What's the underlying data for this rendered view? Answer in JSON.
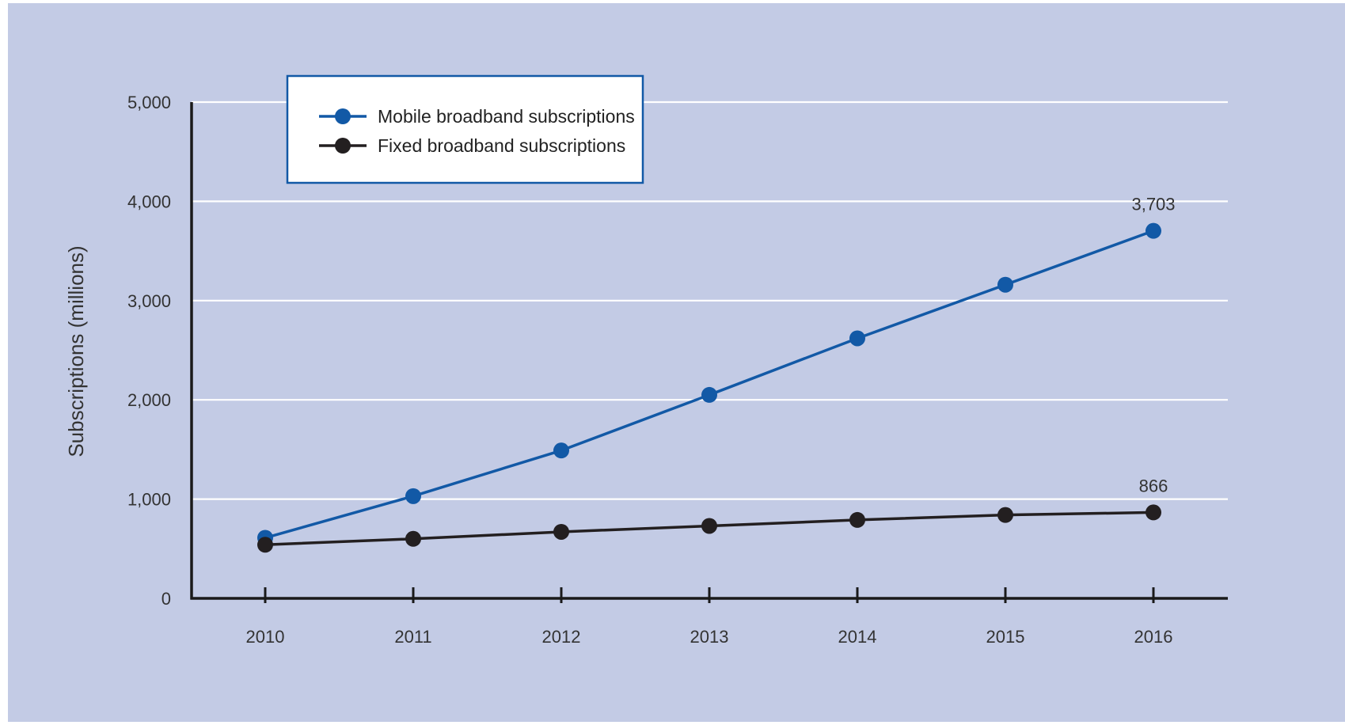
{
  "colors": {
    "panel_bg": "#c3cbe5",
    "gridline": "#ffffff",
    "axis": "#1a1a1a",
    "legend_border": "#1259a6",
    "legend_bg": "#ffffff"
  },
  "chart_data": {
    "type": "line",
    "title": "",
    "xlabel": "",
    "ylabel": "Subscriptions (millions)",
    "x": [
      "2010",
      "2011",
      "2012",
      "2013",
      "2014",
      "2015",
      "2016"
    ],
    "ylim": [
      0,
      5000
    ],
    "yticks": [
      0,
      1000,
      2000,
      3000,
      4000,
      5000
    ],
    "ytick_labels": [
      "0",
      "1,000",
      "2,000",
      "3,000",
      "4,000",
      "5,000"
    ],
    "grid": true,
    "legend_position": "top-left",
    "series": [
      {
        "name": "Mobile broadband subscriptions",
        "color": "#1259a6",
        "values": [
          610,
          1030,
          1490,
          2050,
          2620,
          3160,
          3703
        ]
      },
      {
        "name": "Fixed broadband subscriptions",
        "color": "#231f20",
        "values": [
          540,
          600,
          670,
          730,
          790,
          840,
          866
        ]
      }
    ],
    "annotations": [
      {
        "series": 0,
        "index": 6,
        "text": "3,703"
      },
      {
        "series": 1,
        "index": 6,
        "text": "866"
      }
    ]
  }
}
